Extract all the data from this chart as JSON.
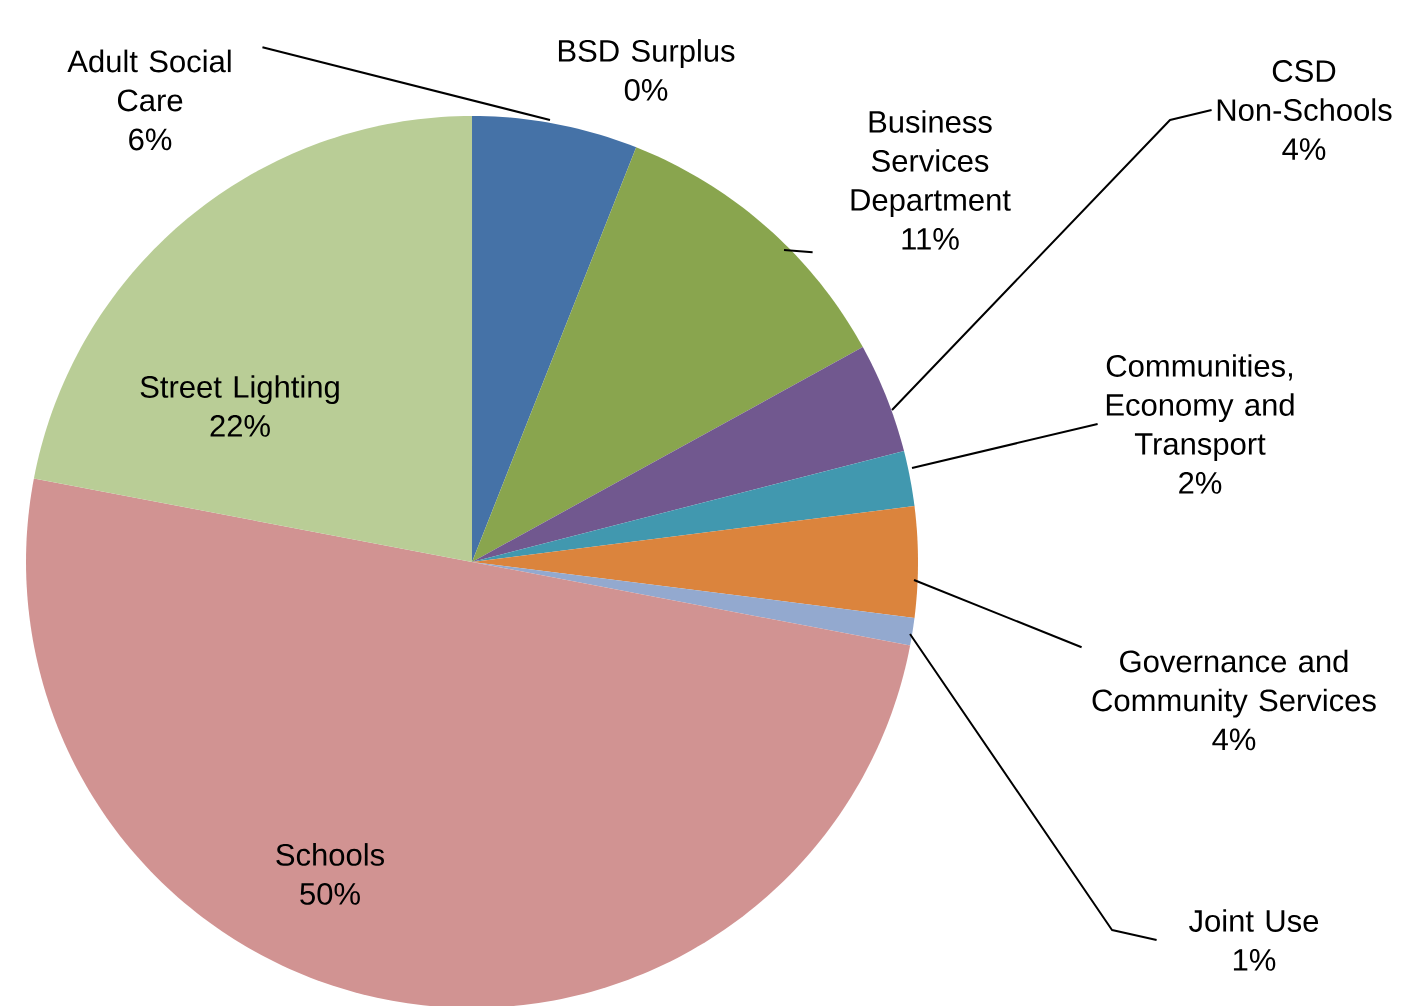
{
  "chart_data": {
    "type": "pie",
    "categories": [
      "Adult Social Care",
      "BSD Surplus",
      "Business Services Department",
      "CSD Non-Schools",
      "Communities, Economy and Transport",
      "Governance and Community Services",
      "Joint Use",
      "Schools",
      "Street Lighting"
    ],
    "values": [
      6,
      0,
      11,
      4,
      2,
      4,
      1,
      50,
      22
    ],
    "value_labels": [
      "6%",
      "0%",
      "11%",
      "4%",
      "2%",
      "4%",
      "1%",
      "50%",
      "22%"
    ],
    "colors": [
      "#4572a7",
      "#aa4643",
      "#89a54e",
      "#71588f",
      "#4198af",
      "#db843d",
      "#93a9cf",
      "#d19392",
      "#b9cd96"
    ]
  }
}
